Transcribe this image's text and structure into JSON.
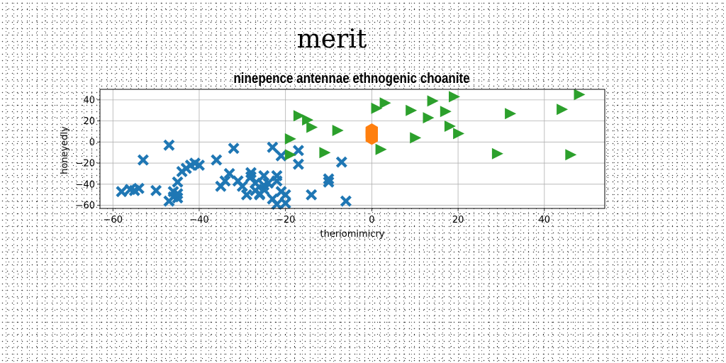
{
  "figure": {
    "suptitle": "merit"
  },
  "chart_data": {
    "type": "scatter",
    "title": "ninepence antennae ethnogenic choanite",
    "xlabel": "theriomimicry",
    "ylabel": "honeyedly",
    "xlim": [
      -63,
      54
    ],
    "ylim": [
      -63,
      50
    ],
    "xticks": [
      -60,
      -40,
      -20,
      0,
      20,
      40
    ],
    "yticks": [
      -60,
      -40,
      -20,
      0,
      20,
      40
    ],
    "grid": true,
    "series": [
      {
        "marker": "x",
        "color": "#1f77b4",
        "points": [
          [
            -58,
            -47
          ],
          [
            -56,
            -45
          ],
          [
            -55,
            -46
          ],
          [
            -54,
            -44
          ],
          [
            -53,
            -17
          ],
          [
            -50,
            -46
          ],
          [
            -47,
            -56
          ],
          [
            -47,
            -3
          ],
          [
            -46,
            -52
          ],
          [
            -46,
            -47
          ],
          [
            -45,
            -38
          ],
          [
            -45,
            -53
          ],
          [
            -45,
            -49
          ],
          [
            -44,
            -28
          ],
          [
            -43,
            -25
          ],
          [
            -42,
            -22
          ],
          [
            -41,
            -20
          ],
          [
            -40,
            -22
          ],
          [
            -36,
            -17
          ],
          [
            -35,
            -42
          ],
          [
            -34,
            -37
          ],
          [
            -33,
            -30
          ],
          [
            -32,
            -6
          ],
          [
            -31,
            -37
          ],
          [
            -30,
            -42
          ],
          [
            -29,
            -50
          ],
          [
            -28,
            -33
          ],
          [
            -28,
            -29
          ],
          [
            -27,
            -46
          ],
          [
            -27,
            -39
          ],
          [
            -26,
            -49
          ],
          [
            -26,
            -50
          ],
          [
            -25,
            -45
          ],
          [
            -25,
            -41
          ],
          [
            -25,
            -32
          ],
          [
            -24,
            -39
          ],
          [
            -23,
            -5
          ],
          [
            -23,
            -54
          ],
          [
            -22,
            -59
          ],
          [
            -22,
            -37
          ],
          [
            -22,
            -32
          ],
          [
            -21,
            -47
          ],
          [
            -21,
            -13
          ],
          [
            -20,
            -50
          ],
          [
            -20,
            -58
          ],
          [
            -17,
            -8
          ],
          [
            -17,
            -21
          ],
          [
            -14,
            -50
          ],
          [
            -10,
            -35
          ],
          [
            -10,
            -38
          ],
          [
            -7,
            -19
          ],
          [
            -6,
            -56
          ]
        ]
      },
      {
        "marker": "hexagon",
        "color": "#ff7f0e",
        "points": [
          [
            0,
            10
          ],
          [
            0,
            7
          ],
          [
            0,
            4
          ],
          [
            0,
            11
          ],
          [
            0,
            8
          ]
        ]
      },
      {
        "marker": "triangle-right",
        "color": "#2ca02c",
        "points": [
          [
            -19,
            3
          ],
          [
            -19,
            -12
          ],
          [
            -17,
            25
          ],
          [
            -15,
            21
          ],
          [
            -14,
            14
          ],
          [
            -11,
            -10
          ],
          [
            -8,
            11
          ],
          [
            1,
            32
          ],
          [
            2,
            -7
          ],
          [
            3,
            37
          ],
          [
            9,
            30
          ],
          [
            10,
            4
          ],
          [
            13,
            23
          ],
          [
            14,
            39
          ],
          [
            17,
            29
          ],
          [
            18,
            15
          ],
          [
            19,
            43
          ],
          [
            20,
            8
          ],
          [
            29,
            -11
          ],
          [
            32,
            27
          ],
          [
            44,
            31
          ],
          [
            46,
            -12
          ],
          [
            48,
            45
          ]
        ]
      }
    ]
  }
}
